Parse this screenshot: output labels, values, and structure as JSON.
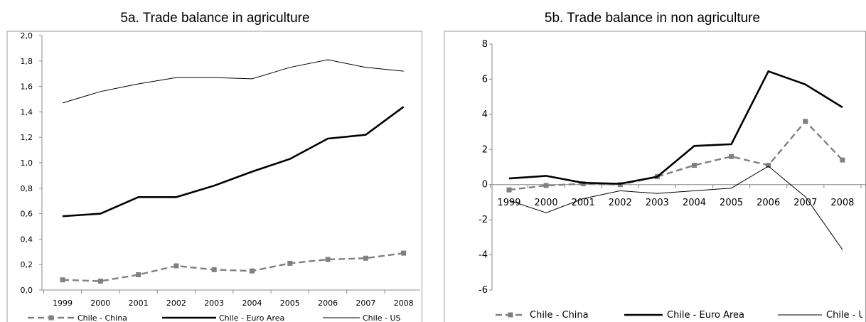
{
  "chart_data": [
    {
      "type": "line",
      "title": "5a. Trade balance in agriculture",
      "categories": [
        "1999",
        "2000",
        "2001",
        "2002",
        "2003",
        "2004",
        "2005",
        "2006",
        "2007",
        "2008"
      ],
      "ylim": [
        0,
        2.0
      ],
      "yticks": [
        "0,0",
        "0,2",
        "0,4",
        "0,6",
        "0,8",
        "1,0",
        "1,2",
        "1,4",
        "1,6",
        "1,8",
        "2,0"
      ],
      "grid": false,
      "legend_position": "bottom",
      "series": [
        {
          "name": "Chile - China",
          "style": "dashed-square",
          "color": "#808080",
          "values": [
            0.08,
            0.07,
            0.12,
            0.19,
            0.16,
            0.15,
            0.21,
            0.24,
            0.25,
            0.29
          ]
        },
        {
          "name": "Chile - Euro Area",
          "style": "thick",
          "color": "#000000",
          "values": [
            0.58,
            0.6,
            0.73,
            0.73,
            0.82,
            0.93,
            1.03,
            1.19,
            1.22,
            1.44
          ]
        },
        {
          "name": "Chile - US",
          "style": "thin",
          "color": "#000000",
          "values": [
            1.47,
            1.56,
            1.62,
            1.67,
            1.67,
            1.66,
            1.75,
            1.81,
            1.75,
            1.72
          ]
        }
      ]
    },
    {
      "type": "line",
      "title": "5b. Trade balance in non agriculture",
      "categories": [
        "1999",
        "2000",
        "2001",
        "2002",
        "2003",
        "2004",
        "2005",
        "2006",
        "2007",
        "2008"
      ],
      "ylim": [
        -6,
        8
      ],
      "yticks": [
        "-6",
        "-4",
        "-2",
        "0",
        "2",
        "4",
        "6",
        "8"
      ],
      "grid": false,
      "legend_position": "bottom",
      "series": [
        {
          "name": "Chile - China",
          "style": "dashed-square",
          "color": "#808080",
          "values": [
            -0.3,
            -0.05,
            0.05,
            0.0,
            0.45,
            1.1,
            1.6,
            1.1,
            3.6,
            1.4
          ]
        },
        {
          "name": "Chile - Euro Area",
          "style": "thick",
          "color": "#000000",
          "values": [
            0.35,
            0.5,
            0.1,
            0.05,
            0.45,
            2.2,
            2.3,
            6.45,
            5.7,
            4.4
          ]
        },
        {
          "name": "Chile - US",
          "style": "thin",
          "color": "#000000",
          "values": [
            -0.9,
            -1.6,
            -0.8,
            -0.35,
            -0.5,
            -0.35,
            -0.2,
            1.05,
            -0.7,
            -3.7
          ]
        }
      ]
    }
  ]
}
